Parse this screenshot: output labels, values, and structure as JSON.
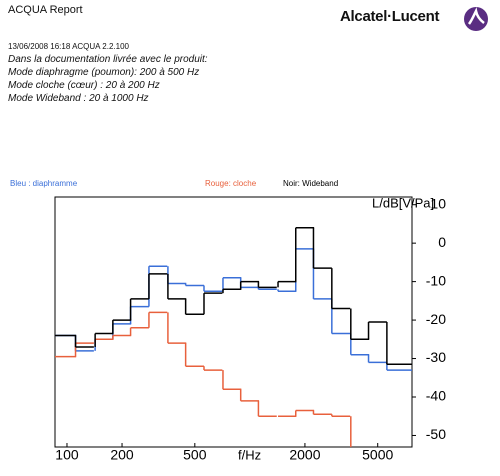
{
  "header": {
    "title": "ACQUA Report",
    "brand": "Alcatel·Lucent",
    "meta": "13/06/2008 16:18   ACQUA 2.2.100",
    "notes": [
      "Dans la documentation livrée avec le produit:",
      "Mode diaphragme (poumon): 200 à 500 Hz",
      "Mode cloche (cœur) : 20 à 200 Hz",
      "Mode Wideband : 20 à 1000 Hz"
    ]
  },
  "chart_data": {
    "type": "step",
    "x_label": "f/Hz",
    "y_label": "L/dB[V/Pa]",
    "xscale": "log",
    "grid": false,
    "x": [
      100,
      125,
      160,
      200,
      250,
      315,
      400,
      500,
      630,
      800,
      1000,
      1250,
      1600,
      2000,
      2500,
      3150,
      4000,
      5000,
      6300
    ],
    "series": [
      {
        "name": "Bleu : diaphramme",
        "color": "#3a6fd8",
        "values": [
          -24,
          -28,
          -25,
          -21,
          -16.5,
          -6,
          -10.5,
          -11,
          -12.5,
          -9,
          -11.5,
          -12,
          -12.5,
          -1.5,
          -14.5,
          -23.5,
          -29,
          -31,
          -33
        ]
      },
      {
        "name": "Rouge: cloche",
        "color": "#e8603c",
        "values": [
          -29.5,
          -26,
          -25,
          -24,
          -22,
          -18,
          -26,
          -32,
          -33,
          -38,
          -41,
          -45,
          -45,
          -43.5,
          -44.5,
          -45,
          null,
          null,
          null
        ]
      },
      {
        "name": "Noir: Wideband",
        "color": "#000000",
        "values": [
          -24,
          -27,
          -23.5,
          -20,
          -14.5,
          -8,
          -14.5,
          -18.5,
          -13,
          -12,
          -10,
          -11.5,
          -10,
          4,
          -6.5,
          -17,
          -25,
          -20.5,
          -31.5
        ]
      }
    ],
    "xlim": [
      86,
      7700
    ],
    "ylim": [
      -53,
      12
    ],
    "xticks": [
      100,
      200,
      500,
      2000,
      5000
    ],
    "yticks": [
      10,
      0,
      -10,
      -20,
      -30,
      -40,
      -50
    ]
  }
}
